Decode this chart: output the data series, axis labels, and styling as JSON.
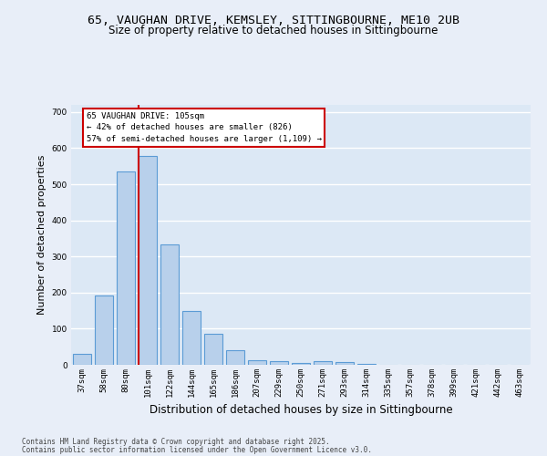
{
  "title1": "65, VAUGHAN DRIVE, KEMSLEY, SITTINGBOURNE, ME10 2UB",
  "title2": "Size of property relative to detached houses in Sittingbourne",
  "xlabel": "Distribution of detached houses by size in Sittingbourne",
  "ylabel": "Number of detached properties",
  "categories": [
    "37sqm",
    "58sqm",
    "80sqm",
    "101sqm",
    "122sqm",
    "144sqm",
    "165sqm",
    "186sqm",
    "207sqm",
    "229sqm",
    "250sqm",
    "271sqm",
    "293sqm",
    "314sqm",
    "335sqm",
    "357sqm",
    "378sqm",
    "399sqm",
    "421sqm",
    "442sqm",
    "463sqm"
  ],
  "values": [
    30,
    193,
    535,
    578,
    333,
    148,
    86,
    40,
    12,
    10,
    5,
    10,
    8,
    3,
    0,
    0,
    0,
    0,
    0,
    0,
    0
  ],
  "bar_color": "#b8d0eb",
  "bar_edge_color": "#5b9bd5",
  "vline_x": 2.575,
  "vline_color": "#cc0000",
  "annotation_title": "65 VAUGHAN DRIVE: 105sqm",
  "annotation_line2": "← 42% of detached houses are smaller (826)",
  "annotation_line3": "57% of semi-detached houses are larger (1,109) →",
  "annotation_box_color": "#ffffff",
  "annotation_box_edge": "#cc0000",
  "ylim": [
    0,
    720
  ],
  "yticks": [
    0,
    100,
    200,
    300,
    400,
    500,
    600,
    700
  ],
  "bg_color": "#dce8f5",
  "fig_bg_color": "#e8eef8",
  "footer1": "Contains HM Land Registry data © Crown copyright and database right 2025.",
  "footer2": "Contains public sector information licensed under the Open Government Licence v3.0.",
  "title1_fontsize": 9.5,
  "title2_fontsize": 8.5,
  "axis_label_fontsize": 8,
  "tick_fontsize": 6.5
}
